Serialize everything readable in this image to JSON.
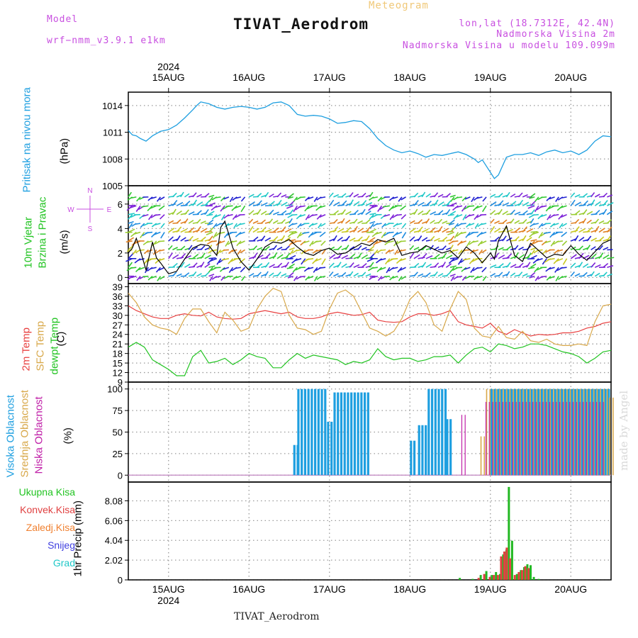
{
  "header": {
    "model_label": "Model",
    "model_value": "wrf−nmm_v3.9.1 e1km",
    "title": "TIVAT_Aerodrom",
    "meteogram": "Meteogram",
    "lonlat": "lon,lat (18.7312E, 42.4N)",
    "altitude": "Nadmorska Visina 2m",
    "model_altitude": "Nadmorska Visina u modelu 109.099m",
    "footer": "TIVAT_Aerodrom",
    "credit": "made by Angel"
  },
  "colors": {
    "pressure": "#1e9fe0",
    "wind_speed": "#000000",
    "wind_gust": "#e84040",
    "temp2m": "#e84040",
    "sfc_temp": "#d8a84a",
    "dewpt": "#22c422",
    "high_cloud": "#1e9fe0",
    "mid_cloud": "#d8a84a",
    "low_cloud": "#c020a8",
    "total_precip": "#22b822",
    "conv_precip": "#e04040",
    "frozen_precip": "#f08030",
    "snow": "#4040e0",
    "graupel": "#20c8c8"
  },
  "chart_data": [
    {
      "type": "line",
      "panel": "pressure",
      "ylabel_left": "Pritisak na nivou mora",
      "ylabel_unit": "(hPa)",
      "ylim": [
        1005,
        1015.5
      ],
      "yticks": [
        1005,
        1008,
        1011,
        1014
      ],
      "year_label": "2024",
      "x_day_labels": [
        "15AUG",
        "16AUG",
        "17AUG",
        "18AUG",
        "19AUG",
        "20AUG"
      ],
      "x_start_day": 14.5,
      "x_end_day": 20.5,
      "grid": true,
      "series": [
        {
          "x": [
            14.5,
            14.55,
            14.6,
            14.65,
            14.72,
            14.8,
            14.9,
            15.0,
            15.1,
            15.2,
            15.3,
            15.35,
            15.4,
            15.5,
            15.6,
            15.7,
            15.8,
            15.9,
            16.0,
            16.1,
            16.2,
            16.3,
            16.4,
            16.5,
            16.6,
            16.7,
            16.8,
            16.9,
            17.0,
            17.1,
            17.2,
            17.3,
            17.4,
            17.5,
            17.6,
            17.7,
            17.8,
            17.9,
            18.0,
            18.1,
            18.2,
            18.3,
            18.4,
            18.5,
            18.6,
            18.7,
            18.8,
            18.85,
            18.9,
            18.95,
            19.0,
            19.05,
            19.1,
            19.2,
            19.3,
            19.4,
            19.5,
            19.6,
            19.7,
            19.8,
            19.9,
            20.0,
            20.1,
            20.2,
            20.3,
            20.4,
            20.5
          ],
          "y": [
            1011.2,
            1010.7,
            1010.6,
            1010.3,
            1010.0,
            1010.6,
            1011.1,
            1011.3,
            1011.8,
            1012.6,
            1013.5,
            1014.0,
            1014.4,
            1014.2,
            1013.8,
            1013.6,
            1013.8,
            1013.9,
            1013.8,
            1013.6,
            1013.8,
            1014.3,
            1014.4,
            1014.0,
            1013.0,
            1012.8,
            1012.9,
            1012.8,
            1012.5,
            1012.0,
            1012.1,
            1012.3,
            1012.2,
            1011.4,
            1010.3,
            1009.5,
            1009.0,
            1008.7,
            1008.9,
            1008.6,
            1008.2,
            1008.5,
            1008.4,
            1008.6,
            1008.8,
            1008.5,
            1008.0,
            1007.6,
            1007.9,
            1007.2,
            1006.5,
            1005.8,
            1006.2,
            1008.2,
            1008.5,
            1008.5,
            1008.7,
            1008.4,
            1008.8,
            1009.0,
            1008.7,
            1008.9,
            1008.5,
            1009.0,
            1010.0,
            1010.6,
            1010.5
          ]
        }
      ]
    },
    {
      "type": "line",
      "panel": "wind",
      "ylabel_left_1": "10m Vjetar",
      "ylabel_left_2": "Brzina i Pravac",
      "ylabel_unit": "(m/s)",
      "compass_n": "N",
      "compass_s": "S",
      "compass_w": "W",
      "compass_e": "E",
      "ylim": [
        -0.5,
        7.5
      ],
      "yticks": [
        0,
        2,
        4,
        6
      ],
      "series": [
        {
          "x": [
            14.5,
            14.55,
            14.6,
            14.65,
            14.72,
            14.8,
            14.85,
            14.9,
            15.0,
            15.1,
            15.2,
            15.3,
            15.4,
            15.5,
            15.6,
            15.65,
            15.7,
            15.8,
            15.9,
            16.0,
            16.1,
            16.2,
            16.3,
            16.4,
            16.5,
            16.6,
            16.7,
            16.8,
            16.9,
            17.0,
            17.1,
            17.2,
            17.3,
            17.4,
            17.5,
            17.6,
            17.7,
            17.8,
            17.9,
            18.0,
            18.1,
            18.2,
            18.3,
            18.4,
            18.5,
            18.6,
            18.7,
            18.8,
            18.9,
            19.0,
            19.05,
            19.1,
            19.2,
            19.3,
            19.4,
            19.5,
            19.6,
            19.7,
            19.8,
            19.9,
            20.0,
            20.1,
            20.2,
            20.3,
            20.4,
            20.5
          ],
          "y": [
            2.0,
            2.4,
            3.2,
            2.2,
            0.6,
            2.9,
            1.6,
            1.2,
            0.3,
            0.5,
            1.5,
            2.4,
            2.7,
            2.6,
            1.8,
            4.1,
            4.6,
            2.4,
            1.3,
            0.6,
            1.5,
            2.5,
            2.9,
            2.8,
            3.1,
            2.5,
            2.0,
            1.8,
            2.2,
            2.4,
            1.9,
            2.0,
            2.4,
            2.8,
            2.6,
            3.1,
            2.9,
            3.2,
            1.8,
            2.0,
            2.1,
            2.6,
            2.3,
            2.0,
            2.2,
            1.6,
            2.5,
            2.0,
            1.2,
            2.0,
            1.5,
            3.0,
            4.2,
            1.8,
            1.3,
            2.8,
            2.2,
            1.6,
            1.9,
            1.8,
            2.6,
            1.9,
            1.4,
            2.1,
            2.8,
            3.1
          ]
        }
      ]
    },
    {
      "type": "line",
      "panel": "temperature",
      "ylabel_1": "2m Temp",
      "ylabel_2": "SFC Temp",
      "ylabel_3": "dewpt Temp",
      "ylabel_unit": "(C)",
      "ylim": [
        9,
        40
      ],
      "yticks": [
        9,
        12,
        15,
        18,
        21,
        24,
        27,
        30,
        33,
        36,
        39
      ],
      "series": [
        {
          "x": [
            14.5,
            14.6,
            14.7,
            14.8,
            14.9,
            15.0,
            15.1,
            15.2,
            15.3,
            15.4,
            15.5,
            15.6,
            15.7,
            15.8,
            15.9,
            16.0,
            16.1,
            16.2,
            16.3,
            16.4,
            16.5,
            16.6,
            16.7,
            16.8,
            16.9,
            17.0,
            17.1,
            17.2,
            17.3,
            17.4,
            17.5,
            17.6,
            17.7,
            17.8,
            17.9,
            18.0,
            18.1,
            18.2,
            18.3,
            18.4,
            18.5,
            18.6,
            18.7,
            18.8,
            18.9,
            19.0,
            19.1,
            19.2,
            19.3,
            19.4,
            19.5,
            19.6,
            19.7,
            19.8,
            19.9,
            20.0,
            20.1,
            20.2,
            20.3,
            20.4,
            20.5
          ],
          "y": [
            33.0,
            31.5,
            30.5,
            29.5,
            29.0,
            29.0,
            30.0,
            30.5,
            30.0,
            29.8,
            31.0,
            29.5,
            29.0,
            28.8,
            29.0,
            30.5,
            31.0,
            31.5,
            31.0,
            30.5,
            31.0,
            29.5,
            29.0,
            29.0,
            29.5,
            30.5,
            31.0,
            30.5,
            30.0,
            30.2,
            31.0,
            28.5,
            28.0,
            27.8,
            28.0,
            29.5,
            30.5,
            30.5,
            30.0,
            30.5,
            31.5,
            28.0,
            27.0,
            26.5,
            26.0,
            27.5,
            25.0,
            24.0,
            25.5,
            24.5,
            23.5,
            24.0,
            23.8,
            24.0,
            24.5,
            24.5,
            25.0,
            26.0,
            26.5,
            27.5,
            28.0
          ]
        },
        {
          "x": [
            14.5,
            14.6,
            14.7,
            14.8,
            14.9,
            15.0,
            15.1,
            15.2,
            15.3,
            15.4,
            15.5,
            15.6,
            15.7,
            15.8,
            15.9,
            16.0,
            16.1,
            16.2,
            16.3,
            16.4,
            16.5,
            16.6,
            16.7,
            16.8,
            16.9,
            17.0,
            17.1,
            17.2,
            17.3,
            17.4,
            17.5,
            17.6,
            17.7,
            17.8,
            17.9,
            18.0,
            18.1,
            18.2,
            18.3,
            18.4,
            18.5,
            18.6,
            18.7,
            18.8,
            18.9,
            19.0,
            19.1,
            19.2,
            19.3,
            19.4,
            19.5,
            19.6,
            19.7,
            19.8,
            19.9,
            20.0,
            20.1,
            20.2,
            20.3,
            20.4,
            20.5
          ],
          "y": [
            37.0,
            34.0,
            29.5,
            27.0,
            26.0,
            25.5,
            24.0,
            29.0,
            32.0,
            32.0,
            28.0,
            24.5,
            31.0,
            28.5,
            25.0,
            26.0,
            32.0,
            36.0,
            38.5,
            37.5,
            30.0,
            26.0,
            25.5,
            24.0,
            25.0,
            32.0,
            37.0,
            38.0,
            36.0,
            31.0,
            26.0,
            25.0,
            23.5,
            25.0,
            29.0,
            35.0,
            37.5,
            34.0,
            27.0,
            25.0,
            32.0,
            37.5,
            35.0,
            26.0,
            23.5,
            23.0,
            26.5,
            23.0,
            22.5,
            25.0,
            22.0,
            21.5,
            22.5,
            21.0,
            20.5,
            20.5,
            21.0,
            20.5,
            28.0,
            33.0,
            33.5
          ]
        },
        {
          "x": [
            14.5,
            14.6,
            14.7,
            14.8,
            14.9,
            15.0,
            15.1,
            15.2,
            15.3,
            15.4,
            15.5,
            15.6,
            15.7,
            15.8,
            15.9,
            16.0,
            16.1,
            16.2,
            16.3,
            16.4,
            16.5,
            16.6,
            16.7,
            16.8,
            16.9,
            17.0,
            17.1,
            17.2,
            17.3,
            17.4,
            17.5,
            17.6,
            17.7,
            17.8,
            17.9,
            18.0,
            18.1,
            18.2,
            18.3,
            18.4,
            18.5,
            18.6,
            18.7,
            18.8,
            18.9,
            19.0,
            19.1,
            19.2,
            19.3,
            19.4,
            19.5,
            19.6,
            19.7,
            19.8,
            19.9,
            20.0,
            20.1,
            20.2,
            20.3,
            20.4,
            20.5
          ],
          "y": [
            20.0,
            21.5,
            20.0,
            16.0,
            14.5,
            13.0,
            11.0,
            11.0,
            17.0,
            19.0,
            15.0,
            15.5,
            16.5,
            14.5,
            16.0,
            18.0,
            17.0,
            16.5,
            13.5,
            13.5,
            16.0,
            18.0,
            16.5,
            17.5,
            17.0,
            16.5,
            16.0,
            14.5,
            15.5,
            15.0,
            16.0,
            19.5,
            17.0,
            16.0,
            16.5,
            16.5,
            15.5,
            16.0,
            17.0,
            17.0,
            17.5,
            15.0,
            17.5,
            19.5,
            20.0,
            18.5,
            21.0,
            20.5,
            19.5,
            20.0,
            21.0,
            21.0,
            20.5,
            19.5,
            18.5,
            18.0,
            17.0,
            15.0,
            16.5,
            18.5,
            19.0
          ]
        }
      ]
    },
    {
      "type": "bar",
      "panel": "clouds",
      "ylabel_1": "Visoka Oblacnost",
      "ylabel_2": "Srednja Oblacnost",
      "ylabel_3": "Niska Oblacnost",
      "ylabel_unit": "(%)",
      "ylim": [
        -8,
        108
      ],
      "yticks": [
        0,
        25,
        50,
        75,
        100
      ],
      "high_cloud_segments": [
        {
          "from": 16.55,
          "to": 16.6,
          "value": 35
        },
        {
          "from": 16.6,
          "to": 16.95,
          "value": 100
        },
        {
          "from": 16.97,
          "to": 17.02,
          "value": 62
        },
        {
          "from": 17.05,
          "to": 17.5,
          "value": 96
        },
        {
          "from": 18.0,
          "to": 18.08,
          "value": 40
        },
        {
          "from": 18.1,
          "to": 18.2,
          "value": 58
        },
        {
          "from": 18.22,
          "to": 18.45,
          "value": 100
        },
        {
          "from": 18.45,
          "to": 18.5,
          "value": 65
        },
        {
          "from": 19.0,
          "to": 20.5,
          "value": 100
        }
      ],
      "mid_cloud_segments": [
        {
          "from": 18.85,
          "to": 18.9,
          "value": 45
        },
        {
          "from": 18.92,
          "to": 20.45,
          "value": 100
        },
        {
          "from": 20.45,
          "to": 20.5,
          "value": 90
        }
      ],
      "low_cloud_segments": [
        {
          "from": 18.6,
          "to": 18.65,
          "value": 70
        },
        {
          "from": 18.9,
          "to": 20.4,
          "value": 85
        }
      ]
    },
    {
      "type": "bar",
      "panel": "precipitation",
      "legend": [
        "Ukupna Kisa",
        "Konvek.Kisa",
        "Zaledj.Kisa",
        "Snijeg",
        "Grad"
      ],
      "ylabel": "1hr Precip (mm)",
      "ylim": [
        0,
        10.0
      ],
      "yticks": [
        0,
        2.02,
        4.04,
        6.06,
        8.08
      ],
      "total": {
        "x": [
          18.62,
          18.78,
          18.88,
          18.95,
          19.02,
          19.07,
          19.12,
          19.16,
          19.2,
          19.23,
          19.27,
          19.33,
          19.38,
          19.42,
          19.46,
          19.5,
          19.54,
          19.6
        ],
        "y": [
          0.2,
          0.1,
          0.5,
          0.9,
          0.5,
          0.8,
          0.6,
          2.6,
          3.1,
          9.5,
          4.0,
          0.6,
          1.0,
          1.3,
          1.6,
          1.5,
          0.3,
          0.1
        ]
      },
      "convective": {
        "x": [
          18.88,
          18.95,
          19.02,
          19.07,
          19.12,
          19.16,
          19.2,
          19.23,
          19.27,
          19.33,
          19.38,
          19.42,
          19.46,
          19.5
        ],
        "y": [
          0.2,
          0.6,
          0.3,
          0.5,
          0.5,
          2.4,
          2.9,
          3.3,
          2.2,
          0.5,
          0.8,
          1.0,
          1.4,
          1.2
        ]
      }
    }
  ]
}
